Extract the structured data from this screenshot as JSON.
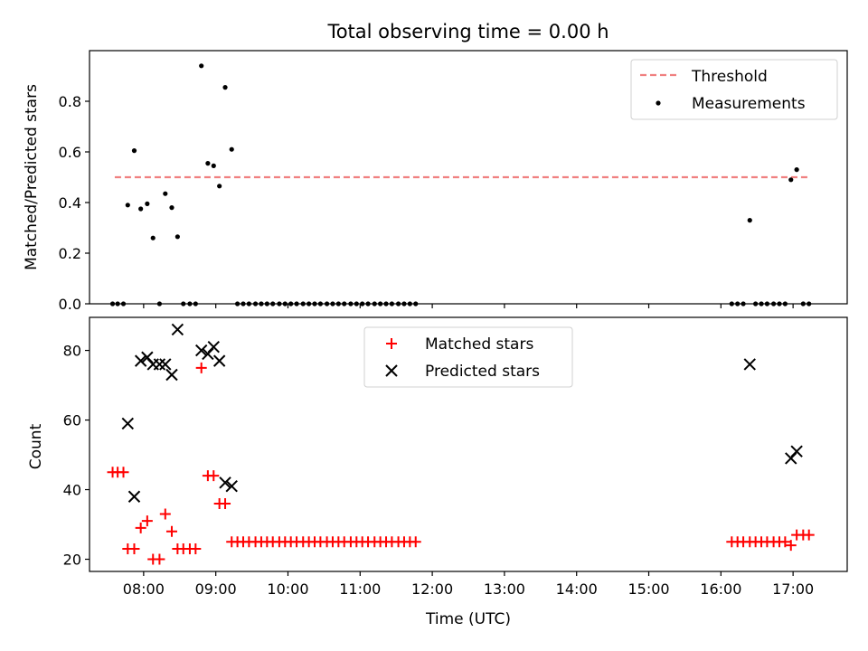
{
  "figure": {
    "title": "Total observing time = 0.00 h"
  },
  "chart_data": [
    {
      "type": "scatter",
      "title": "",
      "xlabel": "",
      "ylabel": "Matched/Predicted stars",
      "xlim": [
        7.25,
        17.75
      ],
      "ylim": [
        0,
        1.0
      ],
      "yticks": [
        0.0,
        0.2,
        0.4,
        0.6,
        0.8
      ],
      "ytick_labels": [
        "0.0",
        "0.2",
        "0.4",
        "0.6",
        "0.8"
      ],
      "xticks": [
        8,
        9,
        10,
        11,
        12,
        13,
        14,
        15,
        16,
        17
      ],
      "show_xtick_labels": false,
      "legend": {
        "location": "upper right"
      },
      "threshold": {
        "name": "Threshold",
        "value": 0.5,
        "x": [
          7.6,
          17.2
        ],
        "color": "#f08080"
      },
      "series": [
        {
          "name": "Measurements",
          "marker": "dot",
          "color": "#000000",
          "x": [
            7.57,
            7.64,
            7.72,
            7.78,
            7.87,
            7.96,
            8.05,
            8.13,
            8.22,
            8.3,
            8.39,
            8.47,
            8.55,
            8.64,
            8.72,
            8.8,
            8.89,
            8.97,
            9.05,
            9.13,
            9.22,
            9.3,
            9.38,
            9.46,
            9.55,
            9.63,
            9.71,
            9.79,
            9.88,
            9.96,
            10.04,
            10.12,
            10.21,
            10.29,
            10.37,
            10.45,
            10.54,
            10.62,
            10.7,
            10.78,
            10.87,
            10.95,
            11.03,
            11.11,
            11.2,
            11.28,
            11.36,
            11.44,
            11.53,
            11.61,
            11.69,
            11.77,
            16.15,
            16.23,
            16.31,
            16.4,
            16.48,
            16.56,
            16.64,
            16.73,
            16.81,
            16.89,
            16.97,
            17.05,
            17.14,
            17.22
          ],
          "y": [
            0,
            0,
            0,
            0.39,
            0.605,
            0.375,
            0.395,
            0.26,
            0,
            0.435,
            0.38,
            0.265,
            0,
            0,
            0,
            0.94,
            0.555,
            0.545,
            0.465,
            0.855,
            0.61,
            0,
            0,
            0,
            0,
            0,
            0,
            0,
            0,
            0,
            0,
            0,
            0,
            0,
            0,
            0,
            0,
            0,
            0,
            0,
            0,
            0,
            0,
            0,
            0,
            0,
            0,
            0,
            0,
            0,
            0,
            0,
            0,
            0,
            0,
            0.33,
            0,
            0,
            0,
            0,
            0,
            0,
            0.49,
            0.53,
            0,
            0
          ]
        }
      ]
    },
    {
      "type": "scatter",
      "title": "",
      "xlabel": "Time (UTC)",
      "ylabel": "Count",
      "xlim": [
        7.25,
        17.75
      ],
      "ylim": [
        16.5,
        89.5
      ],
      "yticks": [
        20,
        40,
        60,
        80
      ],
      "ytick_labels": [
        "20",
        "40",
        "60",
        "80"
      ],
      "xticks": [
        8,
        9,
        10,
        11,
        12,
        13,
        14,
        15,
        16,
        17
      ],
      "xtick_labels": [
        "08:00",
        "09:00",
        "10:00",
        "11:00",
        "12:00",
        "13:00",
        "14:00",
        "15:00",
        "16:00",
        "17:00"
      ],
      "legend": {
        "location": "upper center"
      },
      "series": [
        {
          "name": "Matched stars",
          "marker": "plus",
          "color": "#ff0000",
          "x": [
            7.57,
            7.64,
            7.72,
            7.78,
            7.87,
            7.96,
            8.05,
            8.13,
            8.22,
            8.3,
            8.39,
            8.47,
            8.55,
            8.64,
            8.72,
            8.8,
            8.89,
            8.97,
            9.05,
            9.13,
            9.22,
            9.3,
            9.38,
            9.46,
            9.55,
            9.63,
            9.71,
            9.79,
            9.88,
            9.96,
            10.04,
            10.12,
            10.21,
            10.29,
            10.37,
            10.45,
            10.54,
            10.62,
            10.7,
            10.78,
            10.87,
            10.95,
            11.03,
            11.11,
            11.2,
            11.28,
            11.36,
            11.44,
            11.53,
            11.61,
            11.69,
            11.77,
            16.15,
            16.23,
            16.31,
            16.4,
            16.48,
            16.56,
            16.64,
            16.73,
            16.81,
            16.89,
            16.97,
            17.05,
            17.14,
            17.22
          ],
          "y": [
            45,
            45,
            45,
            23,
            23,
            29,
            31,
            20,
            20,
            33,
            28,
            23,
            23,
            23,
            23,
            75,
            44,
            44,
            36,
            36,
            25,
            25,
            25,
            25,
            25,
            25,
            25,
            25,
            25,
            25,
            25,
            25,
            25,
            25,
            25,
            25,
            25,
            25,
            25,
            25,
            25,
            25,
            25,
            25,
            25,
            25,
            25,
            25,
            25,
            25,
            25,
            25,
            25,
            25,
            25,
            25,
            25,
            25,
            25,
            25,
            25,
            25,
            24,
            27,
            27,
            27
          ]
        },
        {
          "name": "Predicted stars",
          "marker": "x",
          "color": "#000000",
          "x": [
            7.78,
            7.87,
            7.96,
            8.05,
            8.13,
            8.22,
            8.3,
            8.39,
            8.47,
            8.8,
            8.89,
            8.97,
            9.05,
            9.13,
            9.22,
            16.4,
            16.97,
            17.05
          ],
          "y": [
            59,
            38,
            77,
            78,
            76,
            76,
            76,
            73,
            86,
            80,
            79,
            81,
            77,
            42,
            41,
            76,
            49,
            51
          ]
        }
      ]
    }
  ]
}
